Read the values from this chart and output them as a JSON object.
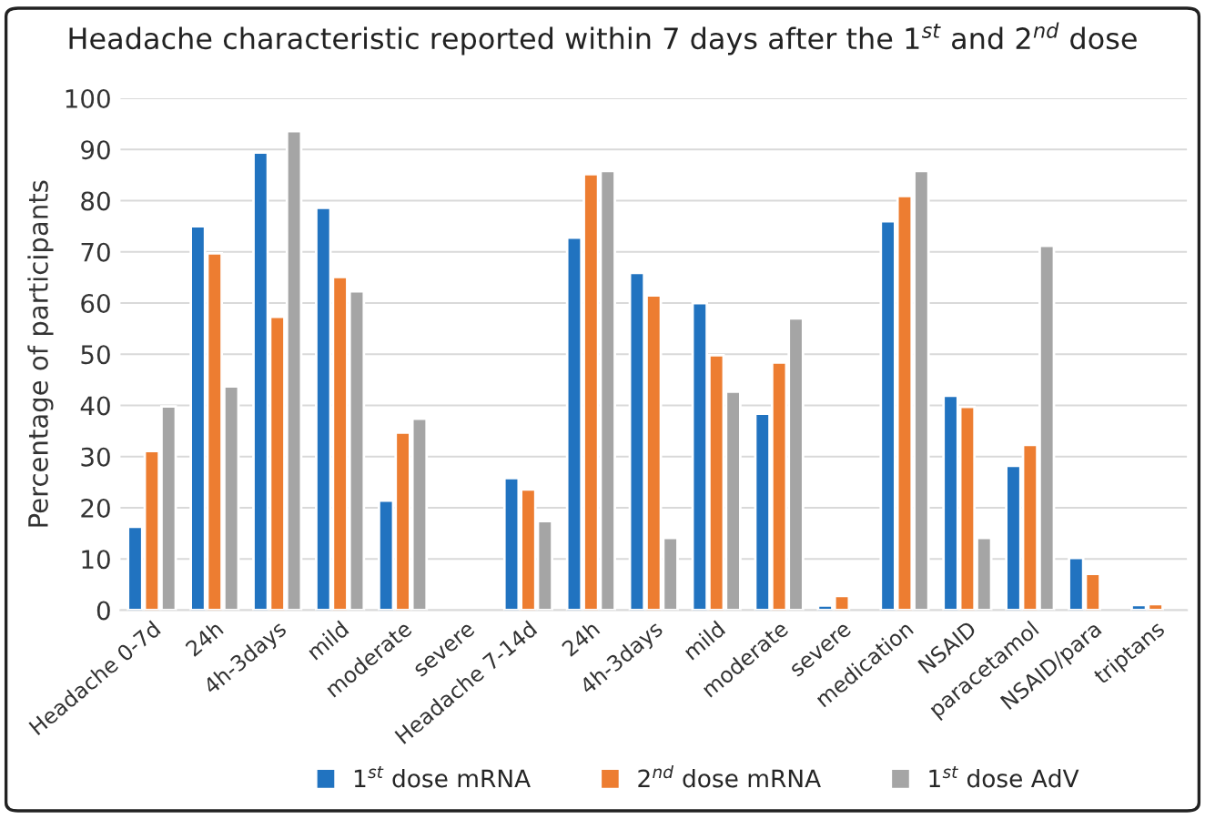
{
  "chart_data": {
    "type": "bar",
    "title": "Headache characteristic reported within 7 days after the 1$^{st}$ and 2$^{nd}$ dose",
    "ylabel": "Percentage of participants",
    "categories": [
      "Headache 0-7d",
      "24h",
      "4h-3days",
      "mild",
      "moderate",
      "severe",
      "Headache 7-14d",
      "24h",
      "4h-3days",
      "mild",
      "moderate",
      "severe",
      "medication",
      "NSAID",
      "paracetamol",
      "NSAID/para",
      "triptans"
    ],
    "series": [
      {
        "name": "1$^{st}$ dose mRNA",
        "color": "#2173c0",
        "values": [
          16.3,
          75,
          89.4,
          78.6,
          21.4,
          null,
          25.8,
          72.8,
          65.9,
          60,
          38.4,
          0.9,
          76,
          41.9,
          28.2,
          10.2,
          1
        ]
      },
      {
        "name": "2$^{nd}$ dose mRNA",
        "color": "#ed7d31",
        "values": [
          31.1,
          69.7,
          57.3,
          65.1,
          34.7,
          null,
          23.6,
          85.2,
          61.5,
          49.8,
          48.4,
          2.8,
          80.9,
          39.7,
          32.3,
          7.1,
          1.2
        ]
      },
      {
        "name": "1$^{st}$ dose AdV",
        "color": "#a5a5a5",
        "values": [
          39.8,
          43.7,
          93.6,
          62.3,
          37.4,
          null,
          17.4,
          85.8,
          14.1,
          42.7,
          57,
          null,
          85.8,
          14.1,
          71.2,
          null,
          null
        ]
      }
    ],
    "ylim": [
      0,
      100
    ],
    "yticks": [
      0,
      10,
      20,
      30,
      40,
      50,
      60,
      70,
      80,
      90,
      100
    ],
    "grid": "y",
    "legend": "bottom"
  }
}
